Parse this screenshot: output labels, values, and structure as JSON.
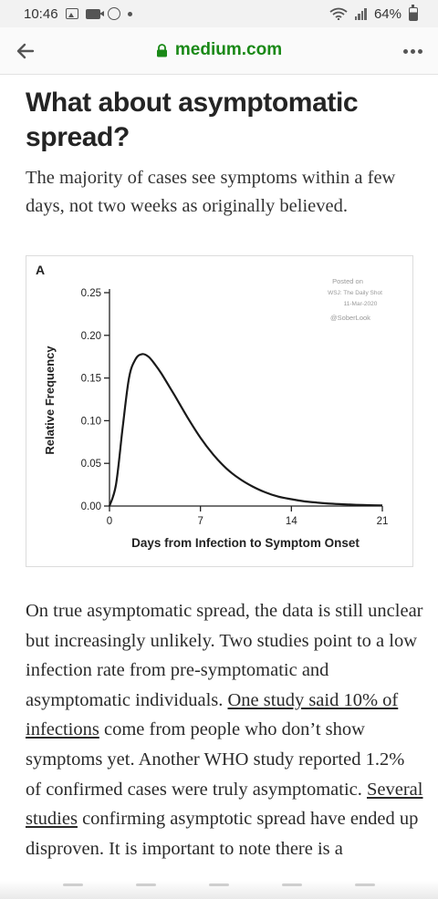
{
  "status_bar": {
    "time": "10:46",
    "battery": "64%",
    "icons": [
      "image-icon",
      "video-icon",
      "facebook-icon",
      "dot-icon",
      "wifi-icon",
      "signal-icon",
      "battery-icon"
    ]
  },
  "browser": {
    "domain": "medium.com",
    "accent_color": "#1a8917"
  },
  "article": {
    "heading": "What about asymptomatic spread?",
    "subhead": "The majority of cases see symptoms within a few days, not two weeks as originally believed.",
    "body": {
      "p1": "On true asymptomatic spread, the data is still unclear but increasingly unlikely. Two studies point to a low infection rate from pre-symptomatic and asymptomatic individuals. ",
      "link1": "One study said 10% of infections",
      "p2": " come from people who don’t show symptoms yet. Another WHO study reported 1.2% of confirmed cases were truly asymptomatic. ",
      "link2": "Several studies",
      "p3": " confirming asymptotic spread have ended up disproven. It is important to note there is a"
    }
  },
  "figure": {
    "panel_label": "A",
    "credit": [
      "Posted on",
      "WSJ: The Daily Shot",
      "11-Mar-2020",
      "@SoberLook"
    ]
  },
  "chart_data": {
    "type": "line",
    "title": "",
    "xlabel": "Days from Infection to Symptom Onset",
    "ylabel": "Relative Frequency",
    "xlim": [
      0,
      21
    ],
    "ylim": [
      0,
      0.25
    ],
    "xticks": [
      "0",
      "7",
      "14",
      "21"
    ],
    "yticks": [
      "0.00",
      "0.05",
      "0.10",
      "0.15",
      "0.20",
      "0.25"
    ],
    "grid": false,
    "series": [
      {
        "x": [
          0,
          0.5,
          1,
          1.5,
          2,
          2.5,
          3,
          3.5,
          4,
          5,
          6,
          7,
          8,
          9,
          10,
          11,
          12,
          13,
          14,
          15,
          16,
          17,
          18,
          19,
          20,
          21
        ],
        "y": [
          0,
          0.025,
          0.09,
          0.15,
          0.172,
          0.178,
          0.175,
          0.166,
          0.155,
          0.13,
          0.104,
          0.08,
          0.06,
          0.044,
          0.032,
          0.023,
          0.016,
          0.011,
          0.008,
          0.0055,
          0.004,
          0.0028,
          0.002,
          0.0014,
          0.001,
          0.0007
        ]
      }
    ]
  }
}
